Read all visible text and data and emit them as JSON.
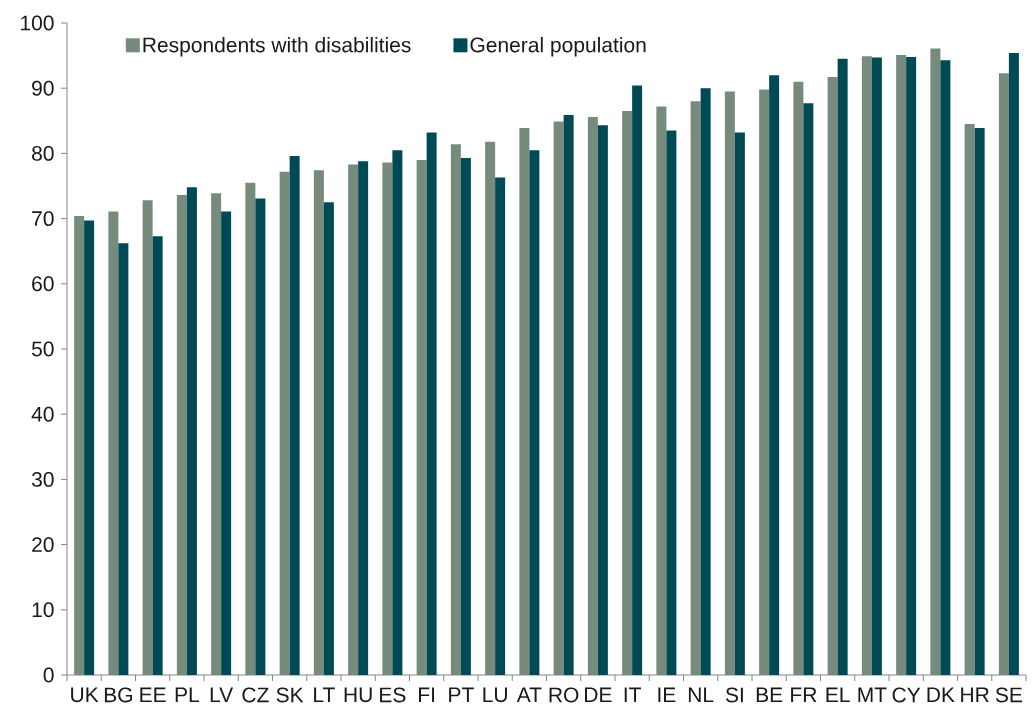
{
  "chart_data": {
    "type": "bar",
    "categories": [
      "UK",
      "BG",
      "EE",
      "PL",
      "LV",
      "CZ",
      "SK",
      "LT",
      "HU",
      "ES",
      "FI",
      "PT",
      "LU",
      "AT",
      "RO",
      "DE",
      "IT",
      "IE",
      "NL",
      "SI",
      "BE",
      "FR",
      "EL",
      "MT",
      "CY",
      "DK",
      "HR",
      "SE"
    ],
    "series": [
      {
        "name": "Respondents with disabilities",
        "color": "#768b7b",
        "values": [
          70.4,
          71.1,
          72.8,
          73.6,
          73.9,
          75.5,
          77.2,
          77.4,
          78.3,
          78.6,
          79.0,
          81.4,
          81.8,
          83.9,
          84.9,
          85.6,
          86.5,
          87.2,
          88.0,
          89.5,
          89.8,
          91.0,
          91.7,
          94.9,
          95.1,
          96.1,
          84.5,
          92.3
        ]
      },
      {
        "name": "General population",
        "color": "#004a56",
        "values": [
          69.7,
          66.2,
          67.3,
          74.8,
          71.1,
          73.1,
          79.6,
          72.5,
          78.8,
          80.5,
          83.2,
          79.3,
          76.3,
          80.5,
          85.9,
          84.3,
          90.4,
          83.5,
          90.0,
          83.2,
          92.0,
          87.7,
          94.5,
          94.7,
          94.8,
          94.3,
          83.9,
          95.4
        ]
      }
    ],
    "ylim": [
      0,
      100
    ],
    "yticks": [
      0,
      10,
      20,
      30,
      40,
      50,
      60,
      70,
      80,
      90,
      100
    ],
    "legend": "top left"
  }
}
